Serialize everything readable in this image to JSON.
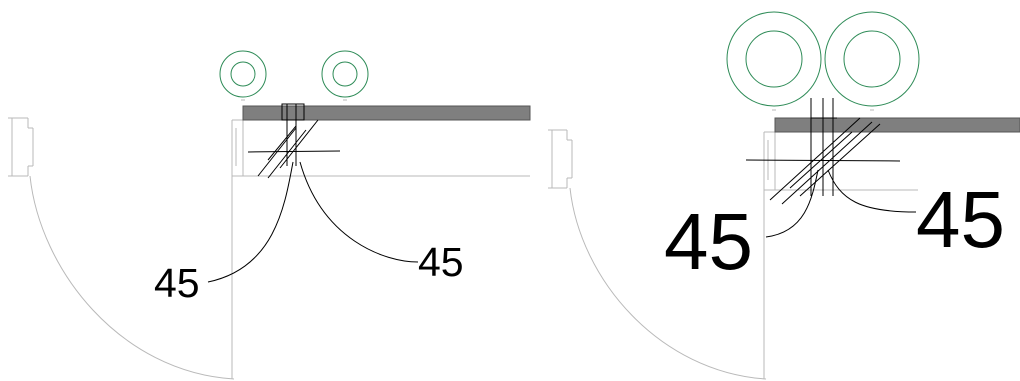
{
  "colors": {
    "background": "#ffffff",
    "ghost_lines": "#b9b9b9",
    "wall_fill": "#7f7f7f",
    "linework": "#000000",
    "circle_stroke": "#2e8b57"
  },
  "left_view": {
    "tag_left": "45",
    "tag_right": "45"
  },
  "right_view": {
    "tag_left": "45",
    "tag_right": "45"
  }
}
